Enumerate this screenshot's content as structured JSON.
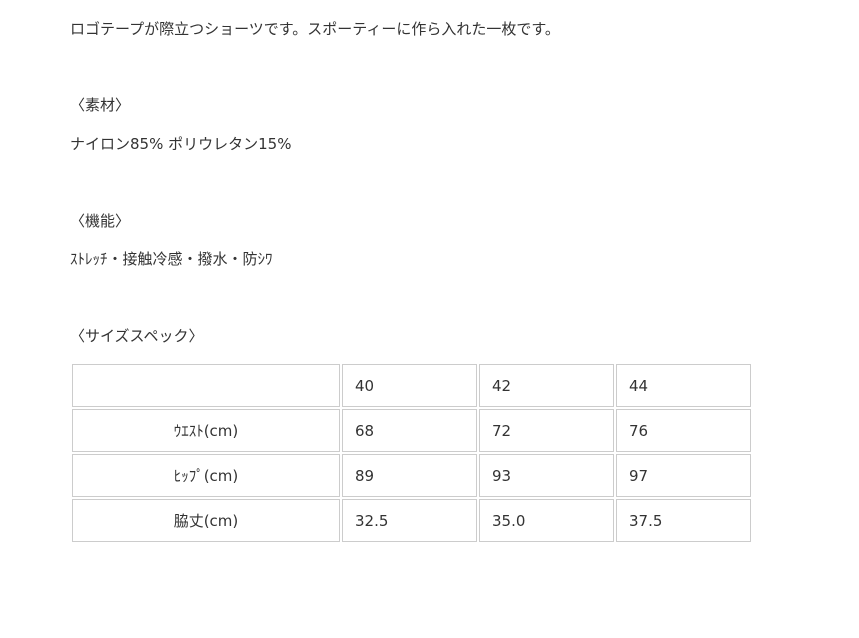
{
  "description": "ロゴテープが際立つショーツです。スポーティーに作ら入れた一枚です。",
  "material": {
    "heading": "〈素材〉",
    "text": "ナイロン85% ポリウレタン15%"
  },
  "function": {
    "heading": "〈機能〉",
    "text": "ｽﾄﾚｯﾁ・接触冷感・撥水・防ｼﾜ"
  },
  "size_spec": {
    "heading": "〈サイズスペック〉",
    "header": [
      "",
      "40",
      "42",
      "44"
    ],
    "rows": [
      {
        "label": "ｳｴｽﾄ(cm)",
        "values": [
          "68",
          "72",
          "76"
        ]
      },
      {
        "label": "ﾋｯﾌﾟ(cm)",
        "values": [
          "89",
          "93",
          "97"
        ]
      },
      {
        "label": "脇丈(cm)",
        "values": [
          "32.5",
          "35.0",
          "37.5"
        ]
      }
    ]
  }
}
